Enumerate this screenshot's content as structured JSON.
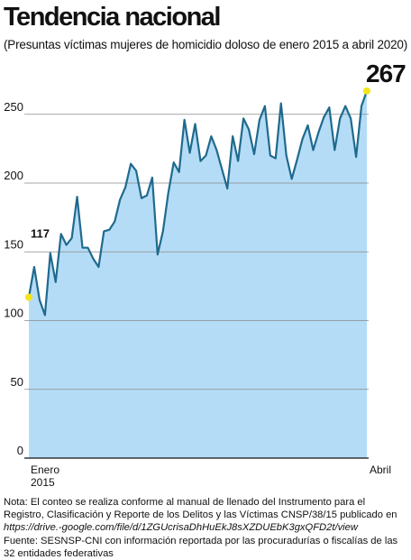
{
  "title": "Tendencia nacional",
  "subtitle": "(Presuntas víctimas mujeres de homicidio doloso de enero 2015 a abril 2020)",
  "chart_data": {
    "type": "area",
    "title": "Tendencia nacional",
    "subtitle": "(Presuntas víctimas mujeres de homicidio doloso de enero 2015 a abril 2020)",
    "xlabel": "",
    "ylabel": "",
    "ylim": [
      0,
      267
    ],
    "yticks": [
      0,
      50,
      100,
      150,
      200,
      250
    ],
    "x_labels": {
      "start": "Enero\n2015",
      "start_line1": "Enero",
      "start_line2": "2015",
      "end": "Abril"
    },
    "annotations": {
      "first": "117",
      "last": "267"
    },
    "grid": true,
    "colors": {
      "fill": "#b5dcf6",
      "line": "#1f6a8e",
      "marker": "#f4e41a",
      "grid": "#8a8a8a"
    },
    "series": [
      {
        "values": [
          117,
          139,
          115,
          104,
          149,
          128,
          163,
          155,
          160,
          190,
          153,
          153,
          145,
          139,
          165,
          166,
          172,
          188,
          197,
          214,
          209,
          189,
          191,
          204,
          148,
          165,
          193,
          215,
          208,
          246,
          222,
          243,
          216,
          220,
          234,
          224,
          210,
          196,
          234,
          216,
          247,
          239,
          221,
          246,
          256,
          220,
          218,
          258,
          220,
          203,
          217,
          232,
          242,
          224,
          237,
          248,
          255,
          224,
          247,
          256,
          247,
          219,
          256,
          267
        ]
      }
    ]
  },
  "notes": {
    "nota_prefix": "Nota: El conteo se realiza conforme al manual de llenado del Instrumento para el Registro, Clasificación y Reporte de los Delitos y las Víctimas CNSP/38/15 publicado en ",
    "nota_link": "https://drive.-google.com/file/d/1ZGUcrisaDhHuEkJ8sXZDUEbK3gxQFD2t/view",
    "fuente": "Fuente: SESNSP-CNI con información reportada por las procuradurías o fiscalías de las 32 entidades federativas"
  }
}
